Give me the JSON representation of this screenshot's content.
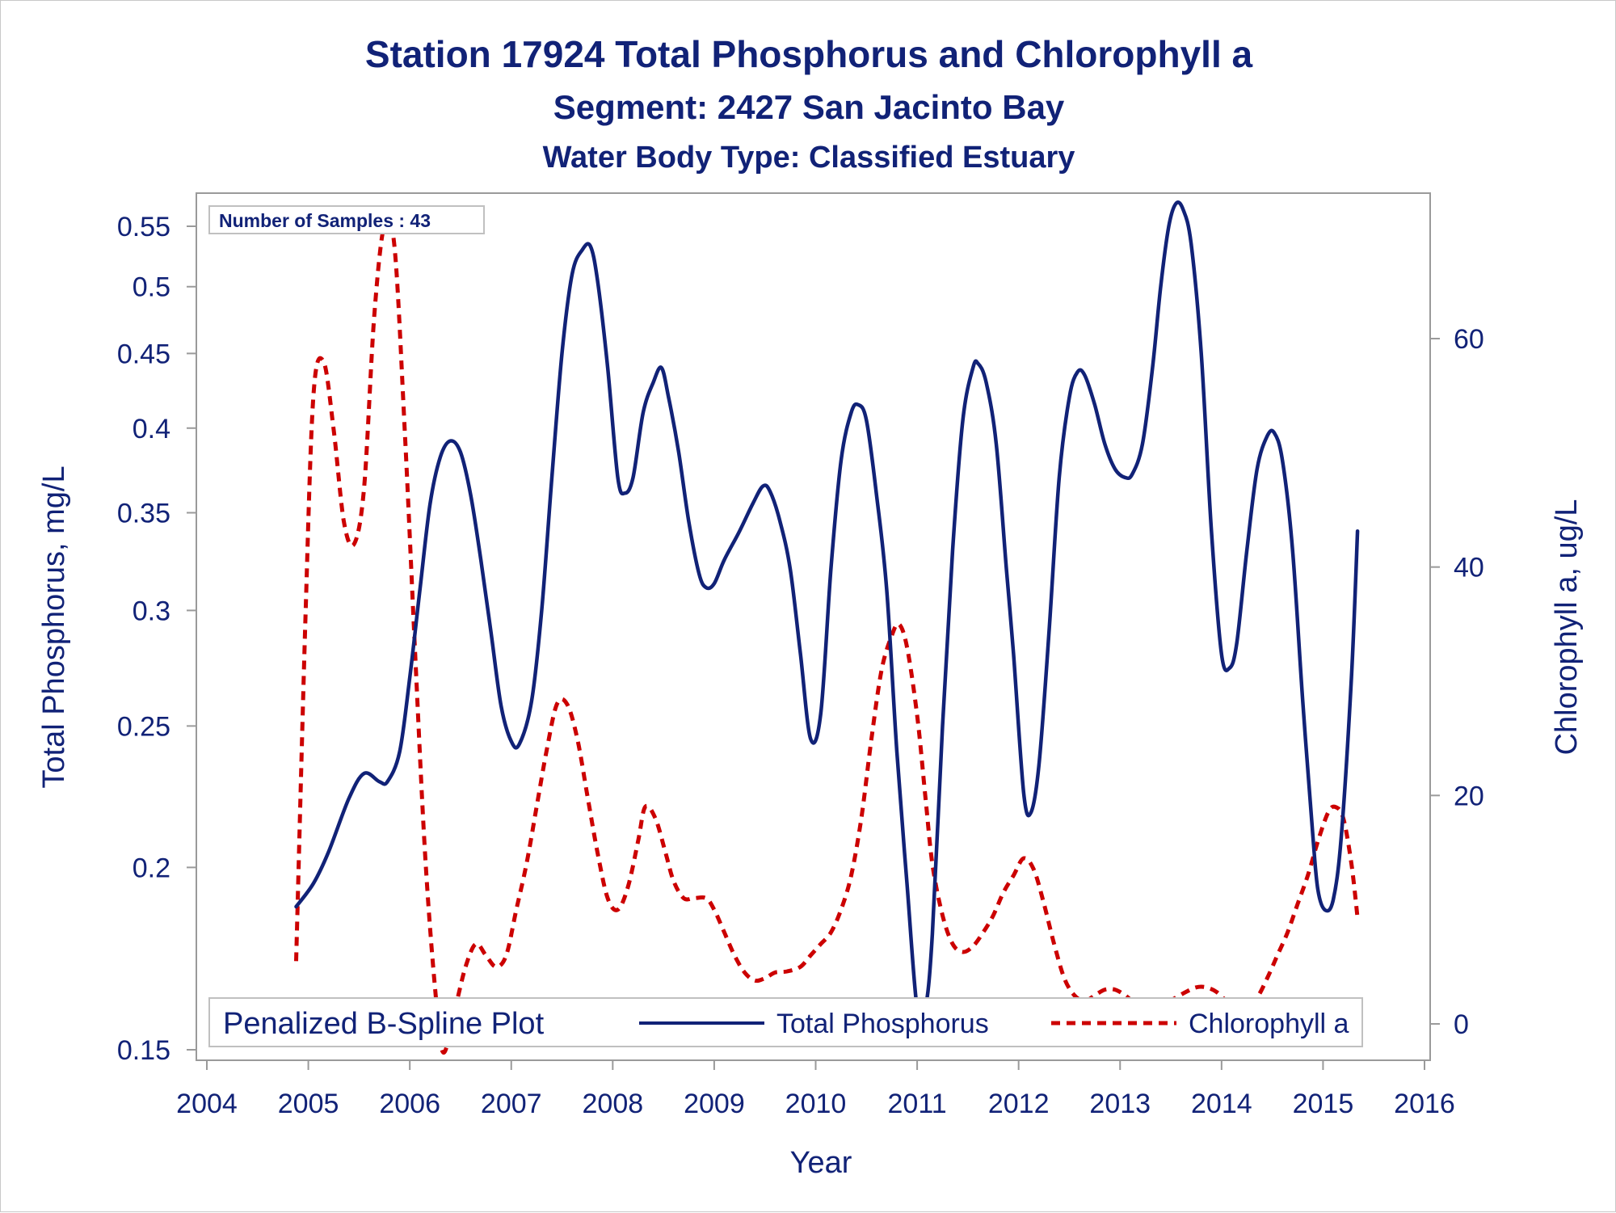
{
  "chart_data": {
    "type": "line",
    "title": "Station 17924  Total Phosphorus and Chlorophyll a",
    "subtitle": "Segment: 2427  San Jacinto Bay",
    "subtitle2": "Water Body Type: Classified Estuary",
    "xlabel": "Year",
    "ylabel_left": "Total Phosphorus, mg/L",
    "ylabel_right": "Chlorophyll a, ug/L",
    "xlim": [
      2004,
      2016
    ],
    "x_ticks": [
      "2004",
      "2005",
      "2006",
      "2007",
      "2008",
      "2009",
      "2010",
      "2011",
      "2012",
      "2013",
      "2014",
      "2015",
      "2016"
    ],
    "y_left_scale": "log",
    "y_left_ticks": [
      {
        "value": 0.15,
        "label": "0.15"
      },
      {
        "value": 0.2,
        "label": "0.2"
      },
      {
        "value": 0.25,
        "label": "0.25"
      },
      {
        "value": 0.3,
        "label": "0.3"
      },
      {
        "value": 0.35,
        "label": "0.35"
      },
      {
        "value": 0.4,
        "label": "0.4"
      },
      {
        "value": 0.45,
        "label": "0.45"
      },
      {
        "value": 0.5,
        "label": "0.5"
      },
      {
        "value": 0.55,
        "label": "0.55"
      }
    ],
    "y_right_ticks": [
      {
        "value": 0,
        "label": "0"
      },
      {
        "value": 20,
        "label": "20"
      },
      {
        "value": 40,
        "label": "40"
      },
      {
        "value": 60,
        "label": "60"
      }
    ],
    "inset_label": "Number of Samples : 43",
    "legend": {
      "title": "Penalized B-Spline Plot",
      "placement": "bottom-inside"
    },
    "series": [
      {
        "name": "Total Phosphorus",
        "axis": "left",
        "color": "#112277",
        "style": "solid",
        "points": [
          [
            2004.88,
            0.188
          ],
          [
            2005.05,
            0.195
          ],
          [
            2005.2,
            0.205
          ],
          [
            2005.4,
            0.223
          ],
          [
            2005.55,
            0.232
          ],
          [
            2005.7,
            0.229
          ],
          [
            2005.78,
            0.229
          ],
          [
            2005.9,
            0.24
          ],
          [
            2006.0,
            0.27
          ],
          [
            2006.1,
            0.31
          ],
          [
            2006.2,
            0.355
          ],
          [
            2006.3,
            0.382
          ],
          [
            2006.4,
            0.392
          ],
          [
            2006.5,
            0.385
          ],
          [
            2006.6,
            0.36
          ],
          [
            2006.7,
            0.325
          ],
          [
            2006.8,
            0.29
          ],
          [
            2006.9,
            0.258
          ],
          [
            2007.0,
            0.244
          ],
          [
            2007.08,
            0.243
          ],
          [
            2007.2,
            0.26
          ],
          [
            2007.3,
            0.3
          ],
          [
            2007.4,
            0.37
          ],
          [
            2007.5,
            0.45
          ],
          [
            2007.6,
            0.51
          ],
          [
            2007.7,
            0.53
          ],
          [
            2007.78,
            0.533
          ],
          [
            2007.85,
            0.505
          ],
          [
            2007.95,
            0.44
          ],
          [
            2008.05,
            0.37
          ],
          [
            2008.12,
            0.361
          ],
          [
            2008.2,
            0.37
          ],
          [
            2008.3,
            0.41
          ],
          [
            2008.4,
            0.43
          ],
          [
            2008.48,
            0.44
          ],
          [
            2008.55,
            0.42
          ],
          [
            2008.65,
            0.385
          ],
          [
            2008.75,
            0.345
          ],
          [
            2008.85,
            0.318
          ],
          [
            2008.92,
            0.311
          ],
          [
            2009.0,
            0.313
          ],
          [
            2009.1,
            0.325
          ],
          [
            2009.25,
            0.34
          ],
          [
            2009.38,
            0.355
          ],
          [
            2009.48,
            0.365
          ],
          [
            2009.55,
            0.362
          ],
          [
            2009.65,
            0.345
          ],
          [
            2009.75,
            0.32
          ],
          [
            2009.85,
            0.28
          ],
          [
            2009.95,
            0.245
          ],
          [
            2010.05,
            0.255
          ],
          [
            2010.15,
            0.32
          ],
          [
            2010.25,
            0.38
          ],
          [
            2010.35,
            0.41
          ],
          [
            2010.42,
            0.415
          ],
          [
            2010.5,
            0.405
          ],
          [
            2010.6,
            0.36
          ],
          [
            2010.7,
            0.31
          ],
          [
            2010.8,
            0.24
          ],
          [
            2010.9,
            0.195
          ],
          [
            2011.0,
            0.16
          ],
          [
            2011.08,
            0.16
          ],
          [
            2011.15,
            0.18
          ],
          [
            2011.25,
            0.25
          ],
          [
            2011.35,
            0.33
          ],
          [
            2011.45,
            0.405
          ],
          [
            2011.55,
            0.44
          ],
          [
            2011.6,
            0.443
          ],
          [
            2011.68,
            0.43
          ],
          [
            2011.78,
            0.39
          ],
          [
            2011.88,
            0.32
          ],
          [
            2011.95,
            0.28
          ],
          [
            2012.05,
            0.225
          ],
          [
            2012.12,
            0.218
          ],
          [
            2012.2,
            0.235
          ],
          [
            2012.3,
            0.29
          ],
          [
            2012.4,
            0.37
          ],
          [
            2012.5,
            0.42
          ],
          [
            2012.58,
            0.437
          ],
          [
            2012.65,
            0.435
          ],
          [
            2012.75,
            0.415
          ],
          [
            2012.85,
            0.39
          ],
          [
            2012.95,
            0.375
          ],
          [
            2013.05,
            0.37
          ],
          [
            2013.12,
            0.372
          ],
          [
            2013.22,
            0.39
          ],
          [
            2013.32,
            0.44
          ],
          [
            2013.4,
            0.5
          ],
          [
            2013.48,
            0.55
          ],
          [
            2013.55,
            0.57
          ],
          [
            2013.62,
            0.565
          ],
          [
            2013.7,
            0.535
          ],
          [
            2013.8,
            0.45
          ],
          [
            2013.9,
            0.34
          ],
          [
            2014.0,
            0.28
          ],
          [
            2014.08,
            0.274
          ],
          [
            2014.15,
            0.285
          ],
          [
            2014.25,
            0.33
          ],
          [
            2014.35,
            0.375
          ],
          [
            2014.45,
            0.395
          ],
          [
            2014.52,
            0.397
          ],
          [
            2014.6,
            0.38
          ],
          [
            2014.7,
            0.33
          ],
          [
            2014.8,
            0.26
          ],
          [
            2014.9,
            0.21
          ],
          [
            2014.95,
            0.193
          ],
          [
            2015.02,
            0.187
          ],
          [
            2015.1,
            0.19
          ],
          [
            2015.18,
            0.21
          ],
          [
            2015.28,
            0.27
          ],
          [
            2015.34,
            0.34
          ]
        ]
      },
      {
        "name": "Chlorophyll a",
        "axis": "right",
        "color": "#cc0000",
        "style": "dashed",
        "points": [
          [
            2004.88,
            5.5
          ],
          [
            2004.97,
            35
          ],
          [
            2005.05,
            55
          ],
          [
            2005.15,
            58
          ],
          [
            2005.25,
            52
          ],
          [
            2005.35,
            44
          ],
          [
            2005.45,
            42
          ],
          [
            2005.55,
            47
          ],
          [
            2005.65,
            62
          ],
          [
            2005.75,
            70
          ],
          [
            2005.85,
            68
          ],
          [
            2005.95,
            52
          ],
          [
            2006.05,
            33
          ],
          [
            2006.15,
            15
          ],
          [
            2006.25,
            3
          ],
          [
            2006.33,
            -2.5
          ],
          [
            2006.45,
            1.5
          ],
          [
            2006.55,
            5
          ],
          [
            2006.65,
            7
          ],
          [
            2006.75,
            6
          ],
          [
            2006.85,
            5
          ],
          [
            2006.95,
            6
          ],
          [
            2007.05,
            10
          ],
          [
            2007.15,
            14
          ],
          [
            2007.25,
            19
          ],
          [
            2007.35,
            24
          ],
          [
            2007.45,
            28
          ],
          [
            2007.55,
            28
          ],
          [
            2007.65,
            25
          ],
          [
            2007.75,
            20
          ],
          [
            2007.85,
            15
          ],
          [
            2007.95,
            11
          ],
          [
            2008.05,
            10
          ],
          [
            2008.15,
            12
          ],
          [
            2008.25,
            16
          ],
          [
            2008.32,
            19
          ],
          [
            2008.42,
            18
          ],
          [
            2008.52,
            15
          ],
          [
            2008.6,
            12.5
          ],
          [
            2008.7,
            11
          ],
          [
            2008.8,
            11
          ],
          [
            2008.92,
            11
          ],
          [
            2009.0,
            10
          ],
          [
            2009.1,
            8
          ],
          [
            2009.2,
            6
          ],
          [
            2009.3,
            4.5
          ],
          [
            2009.4,
            3.8
          ],
          [
            2009.5,
            4
          ],
          [
            2009.6,
            4.5
          ],
          [
            2009.72,
            4.6
          ],
          [
            2009.85,
            5
          ],
          [
            2009.95,
            6
          ],
          [
            2010.05,
            7
          ],
          [
            2010.15,
            8
          ],
          [
            2010.25,
            10
          ],
          [
            2010.35,
            13
          ],
          [
            2010.45,
            18
          ],
          [
            2010.55,
            25
          ],
          [
            2010.65,
            31
          ],
          [
            2010.75,
            34
          ],
          [
            2010.82,
            35
          ],
          [
            2010.9,
            33
          ],
          [
            2011.0,
            27
          ],
          [
            2011.08,
            20
          ],
          [
            2011.15,
            14
          ],
          [
            2011.25,
            9.5
          ],
          [
            2011.35,
            7
          ],
          [
            2011.45,
            6.3
          ],
          [
            2011.55,
            6.8
          ],
          [
            2011.65,
            8
          ],
          [
            2011.75,
            9.5
          ],
          [
            2011.85,
            11.5
          ],
          [
            2011.95,
            13
          ],
          [
            2012.05,
            14.5
          ],
          [
            2012.15,
            13.5
          ],
          [
            2012.25,
            10.5
          ],
          [
            2012.35,
            7
          ],
          [
            2012.45,
            4
          ],
          [
            2012.55,
            2.5
          ],
          [
            2012.65,
            2
          ],
          [
            2012.75,
            2.5
          ],
          [
            2012.85,
            3
          ],
          [
            2012.95,
            3
          ],
          [
            2013.05,
            2.5
          ],
          [
            2013.15,
            1.8
          ],
          [
            2013.25,
            1.5
          ],
          [
            2013.35,
            1.5
          ],
          [
            2013.45,
            1.8
          ],
          [
            2013.55,
            2.3
          ],
          [
            2013.65,
            2.8
          ],
          [
            2013.75,
            3.2
          ],
          [
            2013.85,
            3.2
          ],
          [
            2013.95,
            2.8
          ],
          [
            2014.05,
            2
          ],
          [
            2014.15,
            1.5
          ],
          [
            2014.25,
            1.5
          ],
          [
            2014.35,
            2.3
          ],
          [
            2014.45,
            4
          ],
          [
            2014.55,
            6
          ],
          [
            2014.65,
            8
          ],
          [
            2014.75,
            10.5
          ],
          [
            2014.85,
            13
          ],
          [
            2014.95,
            16
          ],
          [
            2015.05,
            18.5
          ],
          [
            2015.12,
            19
          ],
          [
            2015.2,
            18
          ],
          [
            2015.28,
            14
          ],
          [
            2015.34,
            9.3
          ]
        ]
      }
    ]
  }
}
